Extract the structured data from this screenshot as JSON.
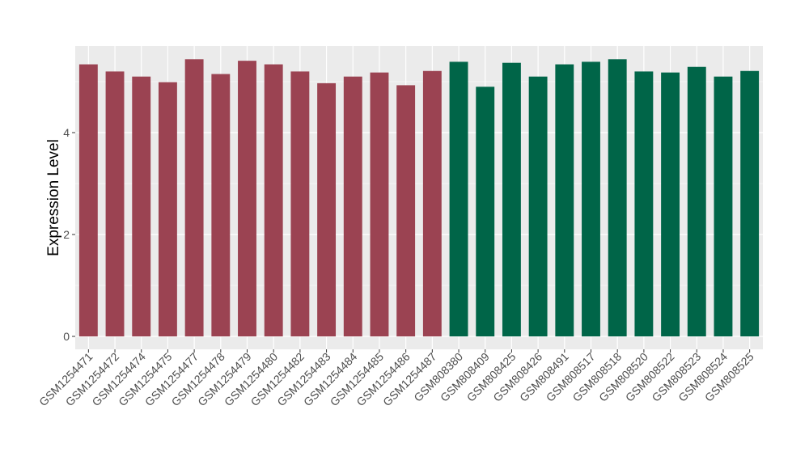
{
  "chart_data": {
    "type": "bar",
    "title": "",
    "xlabel": "",
    "ylabel": "Expression Level",
    "ylim": [
      0,
      5.6
    ],
    "yticks": [
      0,
      2,
      4
    ],
    "grid": true,
    "legend": "none",
    "panel_background": "#ebebeb",
    "gridline_color": "#ffffff",
    "categories": [
      "GSM1254471",
      "GSM1254472",
      "GSM1254474",
      "GSM1254475",
      "GSM1254477",
      "GSM1254478",
      "GSM1254479",
      "GSM1254480",
      "GSM1254482",
      "GSM1254483",
      "GSM1254484",
      "GSM1254485",
      "GSM1254486",
      "GSM1254487",
      "GSM808380",
      "GSM808409",
      "GSM808425",
      "GSM808426",
      "GSM808491",
      "GSM808517",
      "GSM808518",
      "GSM808520",
      "GSM808522",
      "GSM808523",
      "GSM808524",
      "GSM808525"
    ],
    "values": [
      5.34,
      5.2,
      5.1,
      4.99,
      5.44,
      5.15,
      5.41,
      5.34,
      5.2,
      4.97,
      5.1,
      5.18,
      4.93,
      5.21,
      5.39,
      4.9,
      5.37,
      5.1,
      5.34,
      5.39,
      5.44,
      5.2,
      5.18,
      5.29,
      5.1,
      5.21
    ],
    "bar_colors": [
      "#9b4352",
      "#9b4352",
      "#9b4352",
      "#9b4352",
      "#9b4352",
      "#9b4352",
      "#9b4352",
      "#9b4352",
      "#9b4352",
      "#9b4352",
      "#9b4352",
      "#9b4352",
      "#9b4352",
      "#9b4352",
      "#006548",
      "#006548",
      "#006548",
      "#006548",
      "#006548",
      "#006548",
      "#006548",
      "#006548",
      "#006548",
      "#006548",
      "#006548",
      "#006548"
    ]
  }
}
